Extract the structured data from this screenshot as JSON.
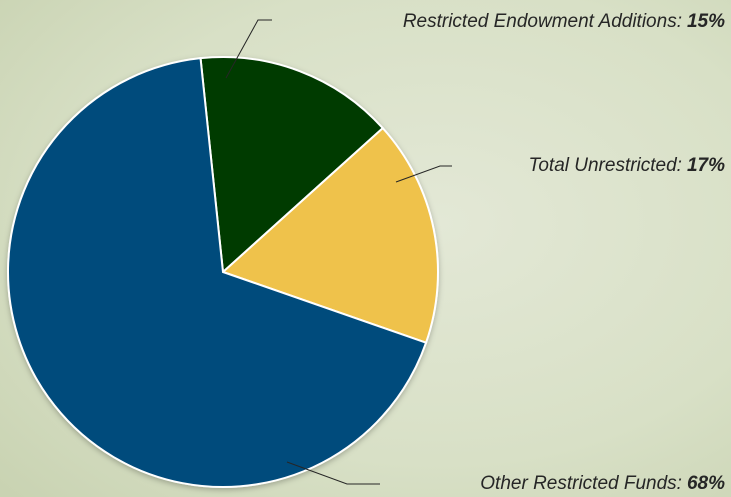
{
  "chart_data": {
    "type": "pie",
    "categories": [
      "Restricted Endowment Additions:",
      "Total Unrestricted:",
      "Other Restricted Funds:"
    ],
    "values": [
      15,
      17,
      68
    ],
    "value_labels": [
      "15%",
      "17%",
      "68%"
    ],
    "colors": [
      "#033a04",
      "#efc24c",
      "#034b7c"
    ]
  }
}
